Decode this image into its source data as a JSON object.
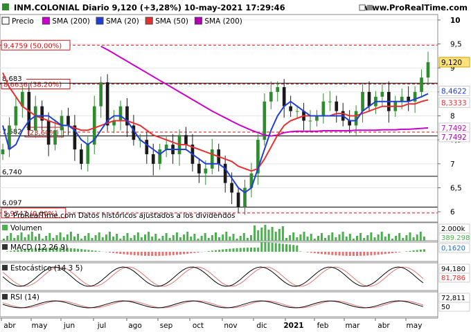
{
  "header": {
    "title": "INM.COLONIAL Diario 9,120 (+3,28%) 10-may-2021 17:29:46",
    "source": "www.ProRealTime.com"
  },
  "legend": [
    {
      "label": "Precio",
      "color": "#ffffff",
      "border": "#222222"
    },
    {
      "label": "SMA (200)",
      "color": "#cc00cc"
    },
    {
      "label": "SMA (20)",
      "color": "#1f3fd6"
    },
    {
      "label": "SMA (50)",
      "color": "#e83030"
    },
    {
      "label": "SMA (200)",
      "color": "#b000b0"
    }
  ],
  "footnote": "© ProRealTime.com Datos históricos ajustados a los dividendos",
  "fib_levels": [
    {
      "label": "9,4759 (50,00%)",
      "value": 9.4759
    },
    {
      "label": "8,6636 (38,20%)",
      "value": 8.6636
    },
    {
      "label": "(23,60%)",
      "value": 7.661
    },
    {
      "label": "5,9747 (0,00%)",
      "value": 5.9747
    }
  ],
  "hlines": [
    {
      "label": "8,683",
      "value": 8.683
    },
    {
      "label": "7,582",
      "value": 7.582
    },
    {
      "label": "6,740",
      "value": 6.74
    },
    {
      "label": "6,097",
      "value": 6.097
    }
  ],
  "price_axis": {
    "ticks": [
      {
        "label": "10",
        "value": 10
      },
      {
        "label": "9,5",
        "value": 9.5
      },
      {
        "label": "9",
        "value": 9
      },
      {
        "label": "8,5",
        "value": 8.5
      },
      {
        "label": "8",
        "value": 8
      },
      {
        "label": "7,5",
        "value": 7.5
      },
      {
        "label": "7",
        "value": 7
      },
      {
        "label": "6,5",
        "value": 6.5
      },
      {
        "label": "6",
        "value": 6
      }
    ],
    "markers": [
      {
        "label": "9,120",
        "value": 9.12,
        "bg": "#ffe27a",
        "fg": "#000000"
      },
      {
        "label": "8,4622",
        "value": 8.4622,
        "bg": "#ffffff",
        "fg": "#1f3fd6"
      },
      {
        "label": "8,3333",
        "value": 8.3333,
        "bg": "#ffffff",
        "fg": "#e83030"
      },
      {
        "label": "7,7492",
        "value": 7.7492,
        "bg": "#ffffff",
        "fg": "#cc00cc"
      },
      {
        "label": "7,7492",
        "value": 7.7492,
        "bg": "#ffffff",
        "fg": "#b000b0"
      }
    ]
  },
  "months": [
    "abr",
    "may",
    "jun",
    "jul",
    "ago",
    "sep",
    "oct",
    "nov",
    "dic",
    "2021",
    "feb",
    "mar",
    "abr",
    "may"
  ],
  "panels": {
    "volume": {
      "label": "Volumen",
      "values": [
        "2.000k",
        "389.298"
      ]
    },
    "macd": {
      "label": "MACD (12 26 9)",
      "values": [
        "0,1620"
      ]
    },
    "stoch": {
      "label": "Estocástico (14 3 5)",
      "values": [
        "94,180",
        "81,786"
      ]
    },
    "rsi": {
      "label": "RSI (14)",
      "values": [
        "72,811",
        "50"
      ]
    }
  },
  "colors": {
    "sma20": "#1f3fd6",
    "sma50": "#e83030",
    "sma200": "#cc00cc",
    "candle_up": "#2e8b2e",
    "candle_down": "#1a1a1a",
    "volume": "#4caf50"
  },
  "chart_data": {
    "type": "candlestick",
    "title": "INM.COLONIAL Diario",
    "last_price": 9.12,
    "change_pct": 3.28,
    "date": "10-may-2021",
    "y_range": [
      5.8,
      10.1
    ],
    "months": [
      "abr",
      "may",
      "jun",
      "jul",
      "ago",
      "sep",
      "oct",
      "nov",
      "dic",
      "2021",
      "feb",
      "mar",
      "abr",
      "may"
    ],
    "close": [
      7.3,
      7.8,
      8.2,
      8.5,
      7.7,
      8.2,
      7.9,
      7.4,
      7.7,
      8.0,
      7.8,
      7.3,
      7.0,
      7.4,
      8.2,
      8.7,
      7.8,
      7.9,
      8.2,
      7.8,
      7.5,
      7.5,
      7.2,
      7.0,
      7.3,
      7.4,
      7.2,
      7.6,
      7.4,
      7.0,
      6.8,
      6.9,
      7.3,
      7.0,
      6.6,
      6.4,
      6.1,
      6.5,
      6.8,
      7.5,
      8.3,
      8.5,
      8.6,
      8.2,
      8.1,
      8.1,
      7.9,
      7.9,
      8.0,
      8.3,
      8.3,
      8.1,
      7.9,
      7.8,
      8.1,
      8.5,
      8.2,
      8.4,
      8.5,
      8.1,
      8.3,
      8.4,
      8.3,
      8.5,
      8.8,
      9.12
    ],
    "sma20": [
      7.8,
      7.3,
      7.4,
      7.7,
      7.9,
      8.0,
      8.0,
      8.0,
      7.9,
      7.8,
      7.8,
      7.7,
      7.5,
      7.4,
      7.5,
      7.7,
      7.9,
      8.0,
      8.0,
      7.9,
      7.7,
      7.5,
      7.4,
      7.3,
      7.2,
      7.3,
      7.3,
      7.3,
      7.3,
      7.2,
      7.1,
      7.0,
      7.0,
      7.0,
      6.9,
      6.7,
      6.5,
      6.4,
      6.5,
      6.9,
      7.3,
      7.7,
      8.0,
      8.2,
      8.3,
      8.2,
      8.1,
      8.0,
      8.0,
      8.0,
      8.0,
      8.0,
      8.0,
      7.9,
      7.9,
      8.1,
      8.2,
      8.3,
      8.3,
      8.3,
      8.3,
      8.3,
      8.3,
      8.35,
      8.4,
      8.4622
    ],
    "sma50": [
      8.9,
      8.6,
      8.4,
      8.2,
      8.1,
      8.0,
      7.95,
      7.9,
      7.85,
      7.8,
      7.8,
      7.75,
      7.7,
      7.7,
      7.75,
      7.8,
      7.85,
      7.9,
      7.9,
      7.9,
      7.85,
      7.8,
      7.7,
      7.6,
      7.55,
      7.5,
      7.45,
      7.4,
      7.4,
      7.35,
      7.3,
      7.25,
      7.2,
      7.15,
      7.1,
      7.05,
      6.95,
      6.9,
      6.85,
      6.9,
      7.1,
      7.35,
      7.6,
      7.8,
      7.9,
      7.95,
      8.0,
      8.0,
      8.0,
      8.0,
      8.0,
      8.05,
      8.05,
      8.0,
      8.0,
      8.05,
      8.1,
      8.15,
      8.2,
      8.2,
      8.2,
      8.2,
      8.25,
      8.25,
      8.3,
      8.3333
    ],
    "sma200": [
      null,
      null,
      null,
      null,
      null,
      null,
      null,
      null,
      null,
      null,
      null,
      null,
      null,
      null,
      null,
      9.45,
      9.38,
      9.3,
      9.22,
      9.14,
      9.06,
      8.98,
      8.9,
      8.82,
      8.74,
      8.66,
      8.58,
      8.5,
      8.42,
      8.34,
      8.26,
      8.18,
      8.1,
      8.03,
      7.96,
      7.89,
      7.82,
      7.76,
      7.7,
      7.65,
      7.6,
      7.58,
      7.6,
      7.65,
      7.67,
      7.68,
      7.68,
      7.68,
      7.68,
      7.69,
      7.69,
      7.69,
      7.69,
      7.69,
      7.7,
      7.7,
      7.7,
      7.7,
      7.71,
      7.71,
      7.71,
      7.72,
      7.72,
      7.73,
      7.74,
      7.7492
    ],
    "fib_levels": [
      {
        "ratio": "50,00%",
        "value": 9.4759
      },
      {
        "ratio": "38,20%",
        "value": 8.6636
      },
      {
        "ratio": "23,60%",
        "value": 7.661
      },
      {
        "ratio": "0,00%",
        "value": 5.9747
      }
    ],
    "support_resistance": [
      8.683,
      7.582,
      6.74,
      6.097
    ],
    "indicators": {
      "volume_last": "389.298",
      "macd_last": 0.162,
      "stoch_k": 94.18,
      "stoch_d": 81.786,
      "rsi_last": 72.811
    }
  }
}
